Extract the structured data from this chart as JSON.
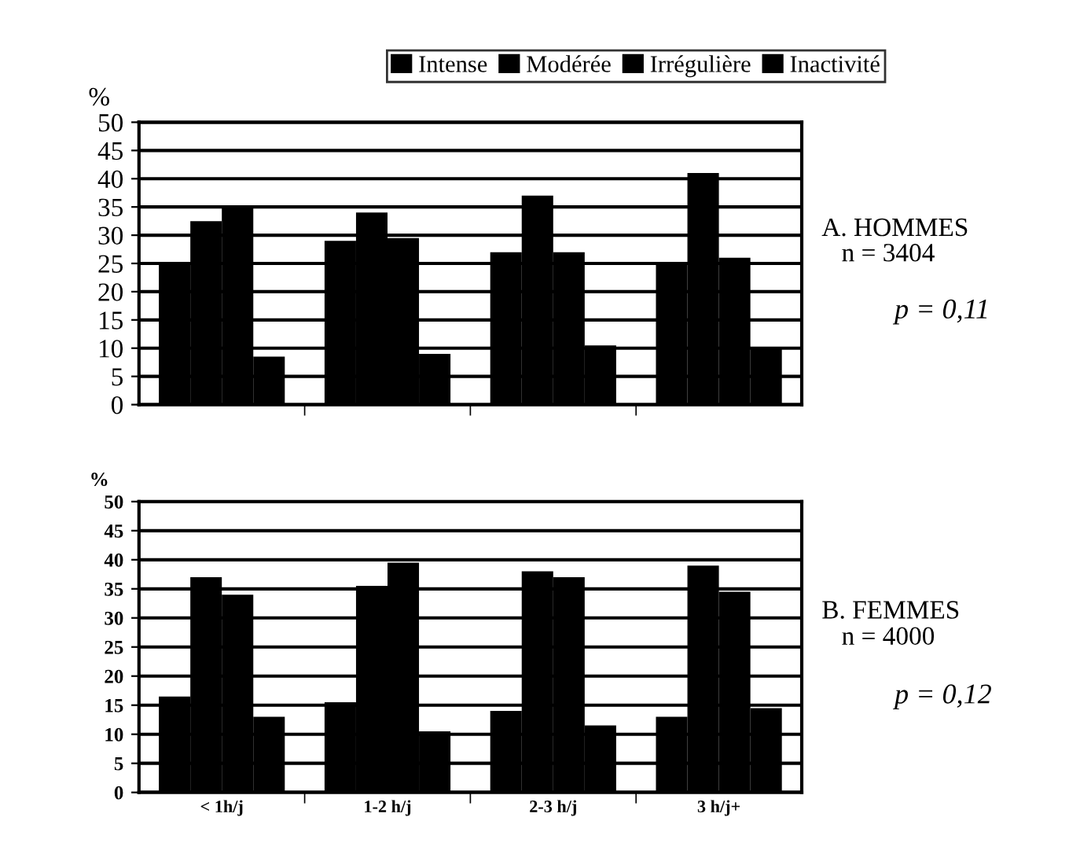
{
  "chart_data": [
    {
      "type": "bar",
      "ylabel": "%",
      "categories": [
        null,
        null,
        null,
        null
      ],
      "series": [
        {
          "name": "Intense",
          "color": "#000000",
          "values": [
            25,
            29,
            27,
            25
          ]
        },
        {
          "name": "Modérée",
          "color": "#000000",
          "values": [
            32.5,
            34,
            37,
            41
          ]
        },
        {
          "name": "Irrégulière",
          "color": "#000000",
          "values": [
            35,
            29.5,
            27,
            26
          ]
        },
        {
          "name": "Inactivité",
          "color": "#000000",
          "values": [
            8.5,
            9,
            10.5,
            10
          ]
        }
      ],
      "ylim": [
        0,
        50
      ],
      "yticks": [
        0,
        5,
        10,
        15,
        20,
        25,
        30,
        35,
        40,
        45,
        50
      ],
      "grid": "y",
      "legend": "top",
      "tick_labels": "y",
      "annotations": [
        "A. HOMMES",
        "n = 3404",
        "p = 0,11"
      ]
    },
    {
      "type": "bar",
      "ylabel": "%",
      "categories": [
        "< 1h/j",
        "1-2 h/j",
        "2-3 h/j",
        "3 h/j+"
      ],
      "series": [
        {
          "color": "#000000",
          "values": [
            16.5,
            15.5,
            14,
            13
          ]
        },
        {
          "color": "#000000",
          "values": [
            37,
            35.5,
            38,
            39
          ]
        },
        {
          "color": "#000000",
          "values": [
            34,
            39.5,
            37,
            34.5
          ]
        },
        {
          "color": "#000000",
          "values": [
            13,
            10.5,
            11.5,
            14.5
          ]
        }
      ],
      "ylim": [
        0,
        50
      ],
      "yticks": [
        0,
        5,
        10,
        15,
        20,
        25,
        30,
        35,
        40,
        45,
        50
      ],
      "grid": "y",
      "annotations": [
        "B. FEMMES",
        "n = 4000",
        "p = 0,12"
      ]
    }
  ]
}
